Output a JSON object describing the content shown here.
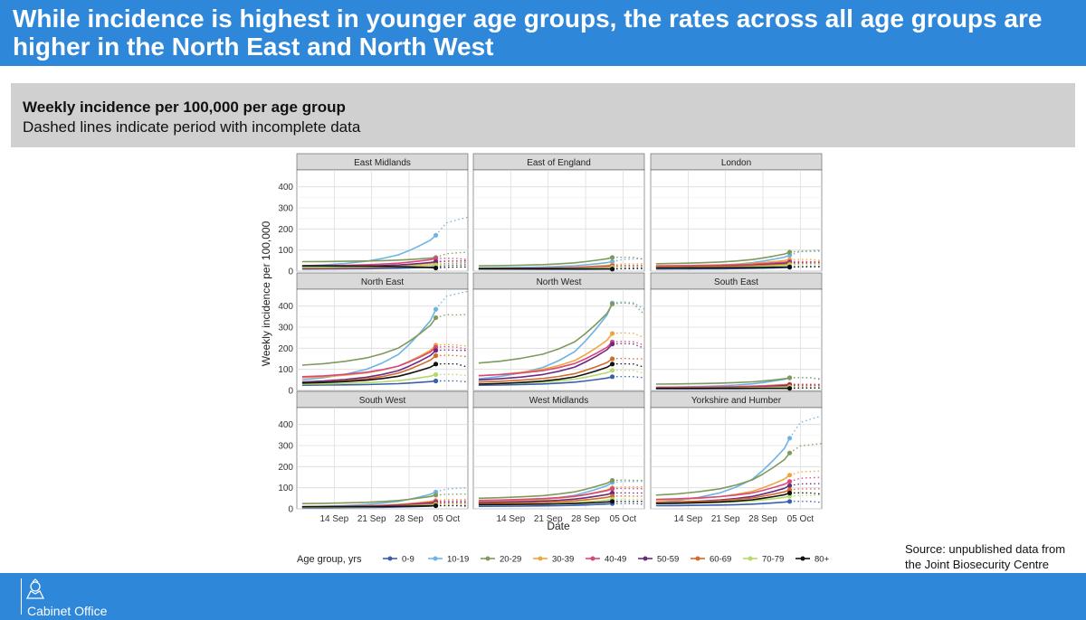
{
  "slide": {
    "title": "While incidence is highest in younger age groups, the rates across all age groups are higher in the North East and North West",
    "subtitle_bold": "Weekly incidence per 100,000 per age group",
    "subtitle": "Dashed lines indicate period with incomplete data",
    "source": "Source: unpublished data from the  Joint Biosecurity Centre",
    "footer_org": "Cabinet Office"
  },
  "chart_data": {
    "type": "line",
    "ylabel": "Weekly incidence per 100,000",
    "xlabel": "Date",
    "x_ticks": [
      "14 Sep",
      "21 Sep",
      "28 Sep",
      "05 Oct"
    ],
    "y_ticks": [
      0,
      100,
      200,
      300,
      400
    ],
    "ylim": [
      0,
      480
    ],
    "x_days": "days since 1 Sep; solid data 7–32, dashed (incomplete) 32–38",
    "xlim": [
      6,
      38
    ],
    "legend_title": "Age group, yrs",
    "groups": [
      "0-9",
      "10-19",
      "20-29",
      "30-39",
      "40-49",
      "50-59",
      "60-69",
      "70-79",
      "80+"
    ],
    "colors": [
      "#3a5fad",
      "#6cb4e4",
      "#7f9a5b",
      "#f0a53c",
      "#d9477e",
      "#6c2a7d",
      "#d36a2a",
      "#b5d96a",
      "#111111"
    ],
    "panels": [
      {
        "name": "East Midlands",
        "series": [
          [
            10,
            20
          ],
          [
            25,
            170
          ],
          [
            45,
            65
          ],
          [
            20,
            40
          ],
          [
            25,
            60
          ],
          [
            20,
            45
          ],
          [
            15,
            30
          ],
          [
            20,
            28
          ],
          [
            25,
            15
          ]
        ],
        "dashed_end": [
          30,
          255,
          90,
          50,
          55,
          48,
          40,
          35,
          20
        ]
      },
      {
        "name": "East of England",
        "series": [
          [
            8,
            10
          ],
          [
            15,
            45
          ],
          [
            25,
            65
          ],
          [
            12,
            30
          ],
          [
            12,
            25
          ],
          [
            10,
            20
          ],
          [
            10,
            20
          ],
          [
            10,
            18
          ],
          [
            12,
            10
          ]
        ],
        "dashed_end": [
          15,
          60,
          55,
          35,
          28,
          22,
          22,
          20,
          12
        ]
      },
      {
        "name": "London",
        "series": [
          [
            10,
            18
          ],
          [
            20,
            75
          ],
          [
            35,
            90
          ],
          [
            25,
            55
          ],
          [
            25,
            45
          ],
          [
            20,
            40
          ],
          [
            20,
            35
          ],
          [
            15,
            30
          ],
          [
            15,
            20
          ]
        ],
        "dashed_end": [
          20,
          100,
          95,
          50,
          45,
          40,
          38,
          32,
          22
        ]
      },
      {
        "name": "North East",
        "series": [
          [
            25,
            45
          ],
          [
            50,
            385
          ],
          [
            120,
            345
          ],
          [
            60,
            215
          ],
          [
            65,
            205
          ],
          [
            40,
            190
          ],
          [
            35,
            165
          ],
          [
            30,
            75
          ],
          [
            35,
            125
          ]
        ],
        "dashed_end": [
          40,
          470,
          360,
          210,
          195,
          190,
          160,
          70,
          110
        ]
      },
      {
        "name": "North West",
        "series": [
          [
            25,
            65
          ],
          [
            55,
            415
          ],
          [
            130,
            410
          ],
          [
            70,
            270
          ],
          [
            70,
            230
          ],
          [
            50,
            220
          ],
          [
            40,
            150
          ],
          [
            30,
            95
          ],
          [
            30,
            125
          ]
        ],
        "dashed_end": [
          60,
          385,
          360,
          250,
          215,
          200,
          150,
          80,
          110
        ]
      },
      {
        "name": "South East",
        "series": [
          [
            8,
            12
          ],
          [
            15,
            60
          ],
          [
            30,
            60
          ],
          [
            15,
            30
          ],
          [
            15,
            28
          ],
          [
            10,
            25
          ],
          [
            10,
            20
          ],
          [
            10,
            15
          ],
          [
            10,
            10
          ]
        ],
        "dashed_end": [
          12,
          55,
          50,
          30,
          28,
          25,
          22,
          15,
          12
        ]
      },
      {
        "name": "South West",
        "series": [
          [
            5,
            15
          ],
          [
            10,
            80
          ],
          [
            25,
            65
          ],
          [
            10,
            40
          ],
          [
            10,
            35
          ],
          [
            8,
            30
          ],
          [
            8,
            25
          ],
          [
            8,
            20
          ],
          [
            10,
            15
          ]
        ],
        "dashed_end": [
          12,
          100,
          70,
          45,
          38,
          32,
          26,
          22,
          15
        ]
      },
      {
        "name": "West Midlands",
        "series": [
          [
            12,
            25
          ],
          [
            30,
            125
          ],
          [
            50,
            135
          ],
          [
            35,
            100
          ],
          [
            40,
            95
          ],
          [
            30,
            75
          ],
          [
            25,
            60
          ],
          [
            20,
            45
          ],
          [
            20,
            35
          ]
        ],
        "dashed_end": [
          22,
          130,
          135,
          105,
          95,
          75,
          60,
          45,
          35
        ]
      },
      {
        "name": "Yorkshire and Humber",
        "series": [
          [
            15,
            35
          ],
          [
            30,
            335
          ],
          [
            65,
            265
          ],
          [
            40,
            160
          ],
          [
            45,
            130
          ],
          [
            30,
            110
          ],
          [
            30,
            90
          ],
          [
            25,
            60
          ],
          [
            25,
            75
          ]
        ],
        "dashed_end": [
          30,
          440,
          310,
          180,
          150,
          120,
          95,
          65,
          70
        ]
      }
    ]
  }
}
